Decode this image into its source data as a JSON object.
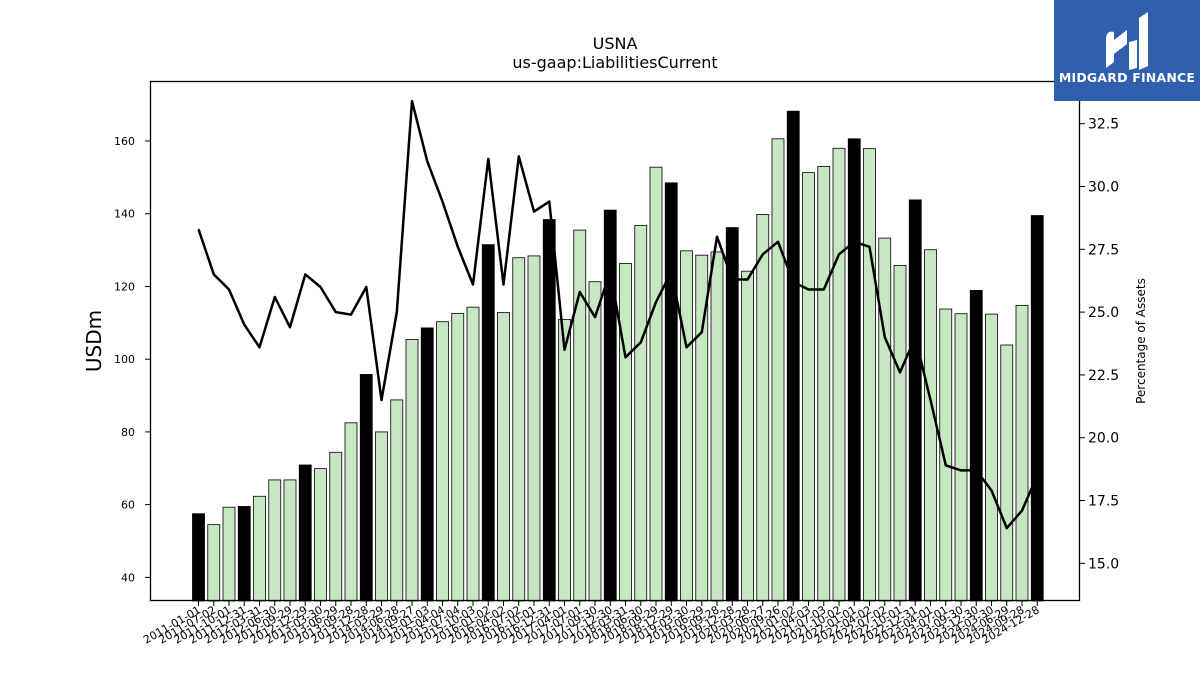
{
  "brand": {
    "name": "MIDGARD FINANCE",
    "bg": "#2f5fad"
  },
  "chart_data": {
    "type": "bar+line",
    "title": "USNA",
    "subtitle": "us-gaap:LiabilitiesCurrent",
    "ylabel": "USDm",
    "y2label": "Percentage of Assets",
    "ylim": [
      33.5,
      176.5
    ],
    "y2lim": [
      13.5,
      34.2
    ],
    "yticks": [
      40,
      60,
      80,
      100,
      120,
      140,
      160
    ],
    "y2ticks": [
      "15.0",
      "17.5",
      "20.0",
      "22.5",
      "25.0",
      "27.5",
      "30.0",
      "32.5"
    ],
    "colors": {
      "annual": "#000000",
      "quarterly": "#c7e6c2",
      "line": "#000000"
    },
    "x": [
      "2011-01-01",
      "2011-07-02",
      "2011-10-01",
      "2011-12-31",
      "2012-03-31",
      "2012-06-30",
      "2012-09-29",
      "2012-12-29",
      "2013-03-30",
      "2013-06-29",
      "2013-09-28",
      "2013-12-28",
      "2014-03-29",
      "2014-06-28",
      "2014-09-27",
      "2015-01-03",
      "2015-04-04",
      "2015-07-04",
      "2015-10-03",
      "2016-01-02",
      "2016-04-02",
      "2016-07-02",
      "2016-10-01",
      "2016-12-31",
      "2017-04-01",
      "2017-07-01",
      "2017-09-30",
      "2017-12-30",
      "2018-03-31",
      "2018-06-30",
      "2018-09-29",
      "2018-12-29",
      "2019-03-30",
      "2019-06-29",
      "2019-09-28",
      "2019-12-28",
      "2020-03-28",
      "2020-06-27",
      "2020-09-26",
      "2021-01-02",
      "2021-04-03",
      "2021-07-03",
      "2021-10-02",
      "2022-01-01",
      "2022-04-02",
      "2022-07-02",
      "2022-10-01",
      "2022-12-31",
      "2023-04-01",
      "2023-07-01",
      "2023-09-30",
      "2023-12-30",
      "2024-03-30",
      "2024-06-29",
      "2024-09-28",
      "2024-12-28"
    ],
    "values": [
      57.5,
      54.5,
      59.3,
      59.5,
      62.3,
      66.8,
      66.8,
      70.9,
      69.9,
      74.4,
      82.5,
      95.8,
      80.0,
      88.8,
      105.4,
      108.6,
      110.3,
      112.6,
      114.3,
      131.5,
      112.8,
      127.9,
      128.4,
      138.4,
      110.9,
      135.5,
      121.3,
      141.0,
      126.3,
      136.8,
      152.8,
      148.5,
      129.8,
      128.6,
      129.5,
      136.2,
      124.2,
      139.8,
      160.6,
      168.2,
      151.3,
      153.0,
      158.0,
      160.6,
      157.9,
      133.3,
      125.8,
      143.8,
      130.1,
      113.8,
      112.5,
      118.9,
      112.4,
      103.9,
      114.8,
      139.5
    ],
    "annual": [
      true,
      false,
      false,
      true,
      false,
      false,
      false,
      true,
      false,
      false,
      false,
      true,
      false,
      false,
      false,
      true,
      false,
      false,
      false,
      true,
      false,
      false,
      false,
      true,
      false,
      false,
      false,
      true,
      false,
      false,
      false,
      true,
      false,
      false,
      false,
      true,
      false,
      false,
      false,
      true,
      false,
      false,
      false,
      true,
      false,
      false,
      false,
      true,
      false,
      false,
      false,
      true,
      false,
      false,
      false,
      true
    ],
    "line": [
      28.3,
      26.5,
      25.9,
      24.5,
      23.6,
      25.6,
      24.4,
      26.5,
      26.0,
      25.0,
      24.9,
      26.0,
      21.5,
      25.0,
      33.4,
      31.0,
      29.4,
      27.6,
      26.1,
      31.1,
      26.1,
      31.2,
      29.0,
      29.4,
      23.5,
      25.8,
      24.8,
      26.6,
      23.2,
      23.8,
      25.4,
      26.6,
      23.6,
      24.2,
      28.0,
      26.3,
      26.3,
      27.3,
      27.8,
      26.2,
      25.9,
      25.9,
      27.3,
      27.8,
      27.6,
      24.0,
      22.6,
      24.0,
      21.5,
      18.9,
      18.7,
      18.7,
      17.9,
      16.4,
      17.1,
      18.5
    ]
  }
}
